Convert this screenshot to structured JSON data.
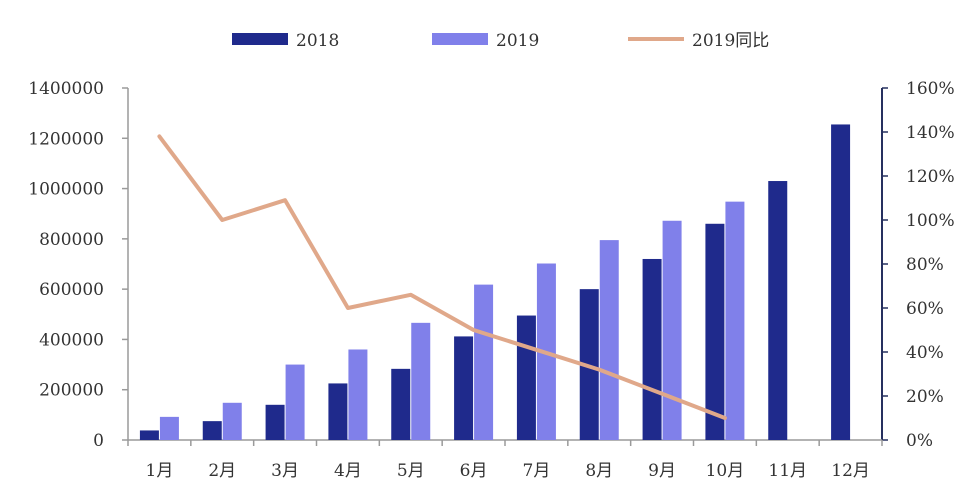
{
  "chart_data": {
    "type": "bar",
    "title": "",
    "xlabel": "",
    "ylabel": "",
    "categories": [
      "1月",
      "2月",
      "3月",
      "4月",
      "5月",
      "6月",
      "7月",
      "8月",
      "9月",
      "10月",
      "11月",
      "12月"
    ],
    "series": [
      {
        "name": "2018",
        "type": "bar",
        "axis": "left",
        "color": "#1f2a8c",
        "values": [
          38000,
          75000,
          140000,
          225000,
          283000,
          412000,
          495000,
          600000,
          720000,
          860000,
          1030000,
          1255000
        ]
      },
      {
        "name": "2019",
        "type": "bar",
        "axis": "left",
        "color": "#8080ea",
        "values": [
          92000,
          148000,
          300000,
          360000,
          466000,
          618000,
          702000,
          795000,
          872000,
          948000,
          null,
          null
        ]
      },
      {
        "name": "2019同比",
        "type": "line",
        "axis": "right",
        "color": "#e0a88a",
        "values": [
          138,
          100,
          109,
          60,
          66,
          50,
          41,
          32,
          21,
          10,
          null,
          null
        ]
      }
    ],
    "ylim": [
      0,
      1400000
    ],
    "y_ticks": [
      0,
      200000,
      400000,
      600000,
      800000,
      1000000,
      1200000,
      1400000
    ],
    "y_tick_labels": [
      "0",
      "200000",
      "400000",
      "600000",
      "800000",
      "1000000",
      "1200000",
      "1400000"
    ],
    "y2lim": [
      0,
      160
    ],
    "y2_ticks": [
      0,
      20,
      40,
      60,
      80,
      100,
      120,
      140,
      160
    ],
    "y2_tick_labels": [
      "0%",
      "20%",
      "40%",
      "60%",
      "80%",
      "100%",
      "120%",
      "140%",
      "160%"
    ],
    "grid": false,
    "legend_position": "top"
  }
}
